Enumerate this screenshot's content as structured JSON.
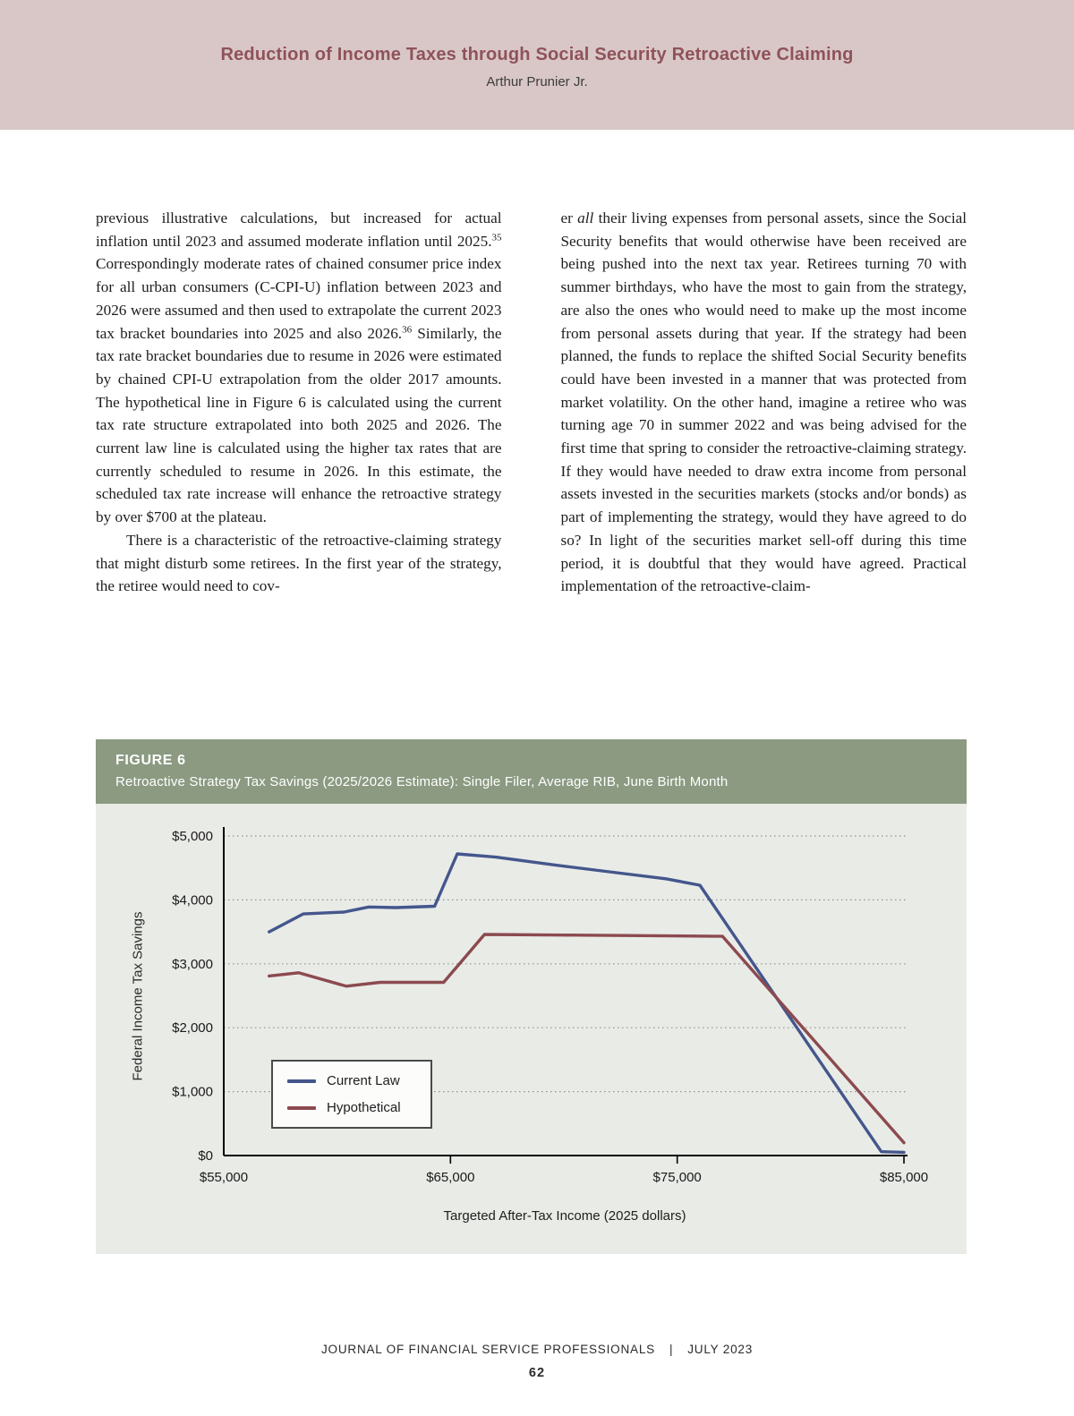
{
  "header": {
    "title": "Reduction of Income Taxes through Social Security Retroactive Claiming",
    "author": "Arthur Prunier Jr."
  },
  "article": {
    "left_column": [
      {
        "indent": false,
        "runs": [
          {
            "t": "previous illustrative calculations, but increased for actual inflation until 2023 and assumed moderate inflation until 2025."
          },
          {
            "t": "35",
            "sup": true
          },
          {
            "t": " Correspondingly moderate rates of chained consumer price index for all urban consumers (C-CPI-U) inflation between 2023 and 2026 were assumed and then used to extrapolate the current 2023 tax bracket boundaries into 2025 and also 2026."
          },
          {
            "t": "36",
            "sup": true
          },
          {
            "t": " Similarly, the tax rate bracket boundaries due to resume in 2026 were estimated by chained CPI-U extrapolation from the older 2017 amounts. The hypothetical line in Figure 6 is calculated using the current tax rate structure extrapolated into both 2025 and 2026. The current law line is calculated using the higher tax rates that are currently scheduled to resume in 2026. In this estimate, the scheduled tax rate increase will enhance the retroactive strategy by over $700 at the plateau."
          }
        ]
      },
      {
        "indent": true,
        "runs": [
          {
            "t": "There is a characteristic of the retroactive-claiming strategy that might disturb some retirees. In the first year of the strategy, the retiree would need to cov-"
          }
        ]
      }
    ],
    "right_column": [
      {
        "indent": false,
        "runs": [
          {
            "t": "er "
          },
          {
            "t": "all",
            "i": true
          },
          {
            "t": " their living expenses from personal assets, since the Social Security benefits that would otherwise have been received are being pushed into the next tax year. Retirees turning 70 with summer birthdays, who have the most to gain from the strategy, are also the ones who would need to make up the most income from personal assets during that year. If the strategy had been planned, the funds to replace the shifted Social Security benefits could have been invested in a manner that was protected from market volatility. On the other hand, imagine a retiree who was turning age 70 in summer 2022 and was being advised for the first time that spring to consider the retroactive-claiming strategy. If they would have needed to draw extra income from personal assets invested in the securities markets (stocks and/or bonds) as part of implementing the strategy, would they have agreed to do so? In light of the securities market sell-off during this time period, it is doubtful that they would have agreed. Practical implementation of the retroactive-claim-"
          }
        ]
      }
    ]
  },
  "figure": {
    "label": "FIGURE 6",
    "caption": "Retroactive Strategy Tax Savings (2025/2026 Estimate): Single Filer, Average RIB, June Birth Month"
  },
  "chart_data": {
    "type": "line",
    "title": "Retroactive Strategy Tax Savings (2025/2026 Estimate): Single Filer, Average RIB, June Birth Month",
    "xlabel": "Targeted After-Tax Income (2025 dollars)",
    "ylabel": "Federal Income Tax Savings",
    "xlim": [
      55000,
      85000
    ],
    "ylim": [
      0,
      5000
    ],
    "grid": "horizontal-dotted",
    "legend_position": "inside-lower-left",
    "plot_background": "#e9ebe7",
    "x_ticks": [
      {
        "v": 55000,
        "label": "$55,000"
      },
      {
        "v": 65000,
        "label": "$65,000"
      },
      {
        "v": 75000,
        "label": "$75,000"
      },
      {
        "v": 85000,
        "label": "$85,000"
      }
    ],
    "y_ticks": [
      {
        "v": 0,
        "label": "$0"
      },
      {
        "v": 1000,
        "label": "$1,000"
      },
      {
        "v": 2000,
        "label": "$2,000"
      },
      {
        "v": 3000,
        "label": "$3,000"
      },
      {
        "v": 4000,
        "label": "$4,000"
      },
      {
        "v": 5000,
        "label": "$5,000"
      }
    ],
    "series": [
      {
        "name": "Current Law",
        "color": "#44568C",
        "points": [
          [
            57000,
            3500
          ],
          [
            58500,
            3780
          ],
          [
            60300,
            3810
          ],
          [
            61400,
            3890
          ],
          [
            62600,
            3880
          ],
          [
            64300,
            3900
          ],
          [
            65300,
            4720
          ],
          [
            67000,
            4670
          ],
          [
            69500,
            4550
          ],
          [
            72000,
            4440
          ],
          [
            74500,
            4330
          ],
          [
            76000,
            4230
          ],
          [
            84000,
            60
          ],
          [
            85000,
            50
          ]
        ]
      },
      {
        "name": "Hypothetical",
        "color": "#8B4A4F",
        "points": [
          [
            57000,
            2810
          ],
          [
            58300,
            2860
          ],
          [
            60400,
            2650
          ],
          [
            61900,
            2710
          ],
          [
            64700,
            2710
          ],
          [
            66500,
            3460
          ],
          [
            70000,
            3450
          ],
          [
            74000,
            3440
          ],
          [
            77000,
            3430
          ],
          [
            85000,
            200
          ]
        ]
      }
    ]
  },
  "footer": {
    "journal": "JOURNAL OF FINANCIAL SERVICE PROFESSIONALS",
    "separator": "|",
    "date": "JULY 2023",
    "page_number": "62"
  }
}
